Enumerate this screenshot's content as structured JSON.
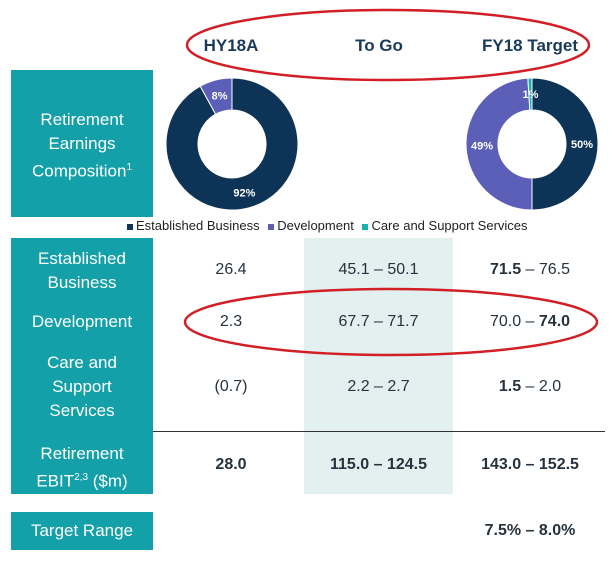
{
  "columns": [
    "HY18A",
    "To Go",
    "FY18 Target"
  ],
  "composition_label": "Retirement Earnings Composition",
  "composition_sup": "1",
  "legend": [
    {
      "label": "Established Business",
      "color": "#0d3457"
    },
    {
      "label": "Development",
      "color": "#5b5fb8"
    },
    {
      "label": "Care and Support Services",
      "color": "#1ab0b0"
    }
  ],
  "chart_data": [
    {
      "type": "pie",
      "title": "HY18A",
      "labels": [
        "Established Business",
        "Development",
        "Care and Support Services"
      ],
      "values": [
        92,
        8,
        0
      ],
      "value_labels": [
        "92%",
        "8%",
        ""
      ],
      "colors": [
        "#0d3457",
        "#5b5fb8",
        "#1ab0b0"
      ]
    },
    {
      "type": "pie",
      "title": "FY18 Target",
      "labels": [
        "Established Business",
        "Development",
        "Care and Support Services"
      ],
      "values": [
        50,
        49,
        1
      ],
      "value_labels": [
        "50%",
        "49%",
        "1%"
      ],
      "colors": [
        "#0d3457",
        "#5b5fb8",
        "#1ab0b0"
      ]
    }
  ],
  "rows": {
    "established": {
      "label_line1": "Established",
      "label_line2": "Business",
      "hy18a": "26.4",
      "togo": "45.1 – 50.1",
      "fy18_low": "71.5",
      "fy18_high": " – 76.5"
    },
    "development": {
      "label": "Development",
      "hy18a": "2.3",
      "togo": "67.7 – 71.7",
      "fy18_low": "70.0 – ",
      "fy18_high": "74.0"
    },
    "care": {
      "label_line1": "Care and",
      "label_line2": "Support",
      "label_line3": "Services",
      "hy18a": "(0.7)",
      "togo": "2.2 – 2.7",
      "fy18_low": "1.5",
      "fy18_high": " – 2.0"
    },
    "ebit": {
      "label_line1": "Retirement",
      "label_line2a": "EBIT",
      "label_sup": "2,3",
      "label_line2b": " ($m)",
      "hy18a": "28.0",
      "togo": "115.0 – 124.5",
      "fy18": "143.0 – 152.5"
    },
    "target": {
      "label": "Target Range",
      "fy18": "7.5% – 8.0%"
    }
  },
  "highlight_color": "#d21f26"
}
